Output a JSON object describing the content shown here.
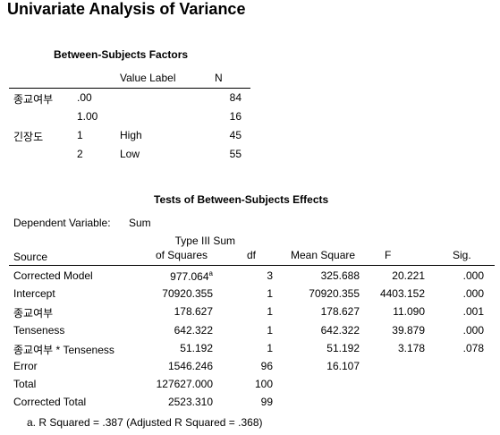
{
  "title": "Univariate Analysis of Variance",
  "factors": {
    "caption": "Between-Subjects Factors",
    "col_value_label": "Value Label",
    "col_n": "N",
    "rows": [
      {
        "factor": "종교여부",
        "value": ".00",
        "label": "",
        "n": "84"
      },
      {
        "factor": "",
        "value": "1.00",
        "label": "",
        "n": "16"
      },
      {
        "factor": "긴장도",
        "value": "1",
        "label": "High",
        "n": "45"
      },
      {
        "factor": "",
        "value": "2",
        "label": "Low",
        "n": "55"
      }
    ]
  },
  "effects": {
    "caption": "Tests of Between-Subjects Effects",
    "dep_label": "Dependent Variable:",
    "dep_value": "Sum",
    "headers": {
      "source": "Source",
      "ss_line1": "Type III Sum",
      "ss_line2": "of Squares",
      "df": "df",
      "ms": "Mean Square",
      "f": "F",
      "sig": "Sig."
    },
    "rows": [
      {
        "source": "Corrected Model",
        "ss": "977.064",
        "ss_sup": "a",
        "df": "3",
        "ms": "325.688",
        "f": "20.221",
        "sig": ".000"
      },
      {
        "source": "Intercept",
        "ss": "70920.355",
        "ss_sup": "",
        "df": "1",
        "ms": "70920.355",
        "f": "4403.152",
        "sig": ".000"
      },
      {
        "source": "종교여부",
        "ss": "178.627",
        "ss_sup": "",
        "df": "1",
        "ms": "178.627",
        "f": "11.090",
        "sig": ".001"
      },
      {
        "source": "Tenseness",
        "ss": "642.322",
        "ss_sup": "",
        "df": "1",
        "ms": "642.322",
        "f": "39.879",
        "sig": ".000"
      },
      {
        "source": "종교여부 * Tenseness",
        "ss": "51.192",
        "ss_sup": "",
        "df": "1",
        "ms": "51.192",
        "f": "3.178",
        "sig": ".078"
      },
      {
        "source": "Error",
        "ss": "1546.246",
        "ss_sup": "",
        "df": "96",
        "ms": "16.107",
        "f": "",
        "sig": ""
      },
      {
        "source": "Total",
        "ss": "127627.000",
        "ss_sup": "",
        "df": "100",
        "ms": "",
        "f": "",
        "sig": ""
      },
      {
        "source": "Corrected Total",
        "ss": "2523.310",
        "ss_sup": "",
        "df": "99",
        "ms": "",
        "f": "",
        "sig": ""
      }
    ],
    "footnote": "a. R Squared = .387 (Adjusted R Squared = .368)"
  }
}
